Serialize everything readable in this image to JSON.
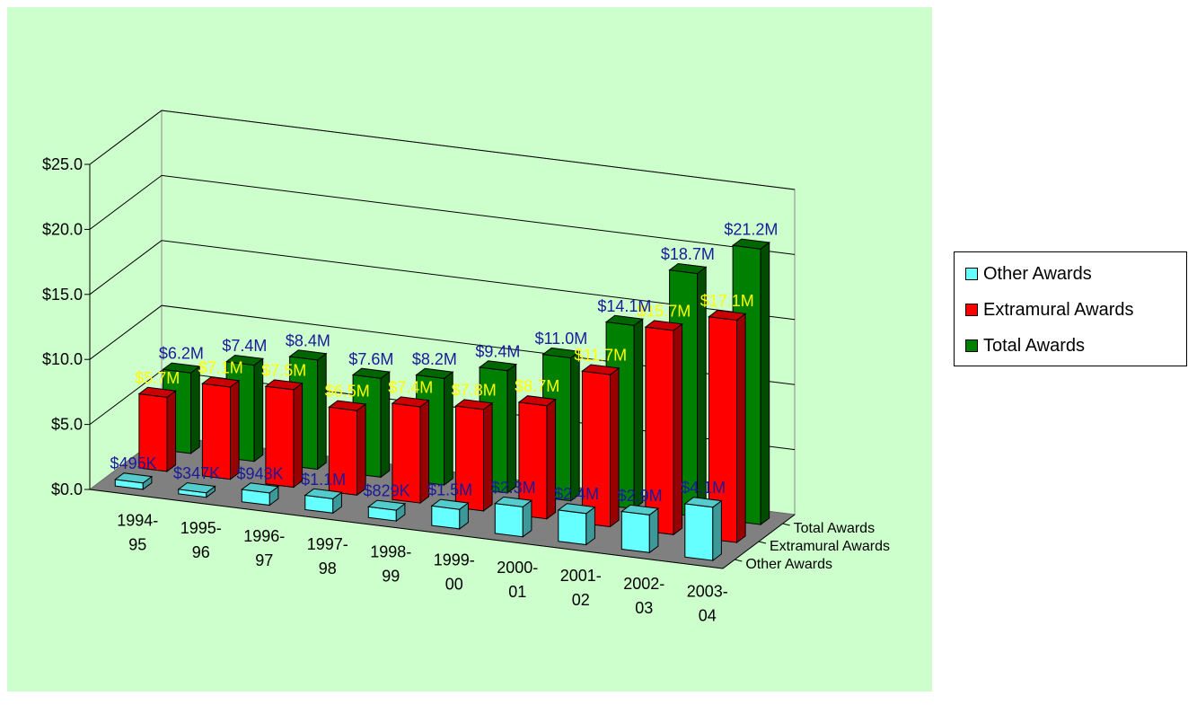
{
  "chart_data": {
    "type": "bar",
    "subtype": "3d-clustered-column",
    "categories": [
      "1994-95",
      "1995-96",
      "1996-97",
      "1997-98",
      "1998-99",
      "1999-00",
      "2000-01",
      "2001-02",
      "2002-03",
      "2003-04"
    ],
    "series": [
      {
        "name": "Other Awards",
        "color": "#66ffff",
        "values": [
          0.495,
          0.347,
          0.943,
          1.1,
          0.829,
          1.5,
          2.3,
          2.4,
          2.9,
          4.1
        ],
        "labels": [
          "$495K",
          "$347K",
          "$943K",
          "$1.1M",
          "$829K",
          "$1.5M",
          "$2.3M",
          "$2.4M",
          "$2.9M",
          "$4.1M"
        ],
        "label_color": "#1a1a9a"
      },
      {
        "name": "Extramural Awards",
        "color": "#ff0000",
        "values": [
          5.7,
          7.1,
          7.5,
          6.5,
          7.4,
          7.8,
          8.7,
          11.7,
          15.7,
          17.1
        ],
        "labels": [
          "$5.7M",
          "$7.1M",
          "$7.5M",
          "$6.5M",
          "$7.4M",
          "$7.8M",
          "$8.7M",
          "$11.7M",
          "$15.7M",
          "$17.1M"
        ],
        "label_color": "#ffff00"
      },
      {
        "name": "Total Awards",
        "color": "#008000",
        "values": [
          6.2,
          7.4,
          8.4,
          7.6,
          8.2,
          9.4,
          11.0,
          14.1,
          18.7,
          21.2
        ],
        "labels": [
          "$6.2M",
          "$7.4M",
          "$8.4M",
          "$7.6M",
          "$8.2M",
          "$9.4M",
          "$11.0M",
          "$14.1M",
          "$18.7M",
          "$21.2M"
        ],
        "label_color": "#1a1a9a"
      }
    ],
    "y_ticks": [
      "$0.0",
      "$5.0",
      "$10.0",
      "$15.0",
      "$20.0",
      "$25.0"
    ],
    "ylim": [
      0,
      25
    ],
    "depth_labels": [
      "Total Awards",
      "Extramural Awards",
      "Other Awards"
    ],
    "plot_background": "#ccffcc",
    "floor_color": "#808080",
    "grid": true,
    "legend_position": "right"
  }
}
